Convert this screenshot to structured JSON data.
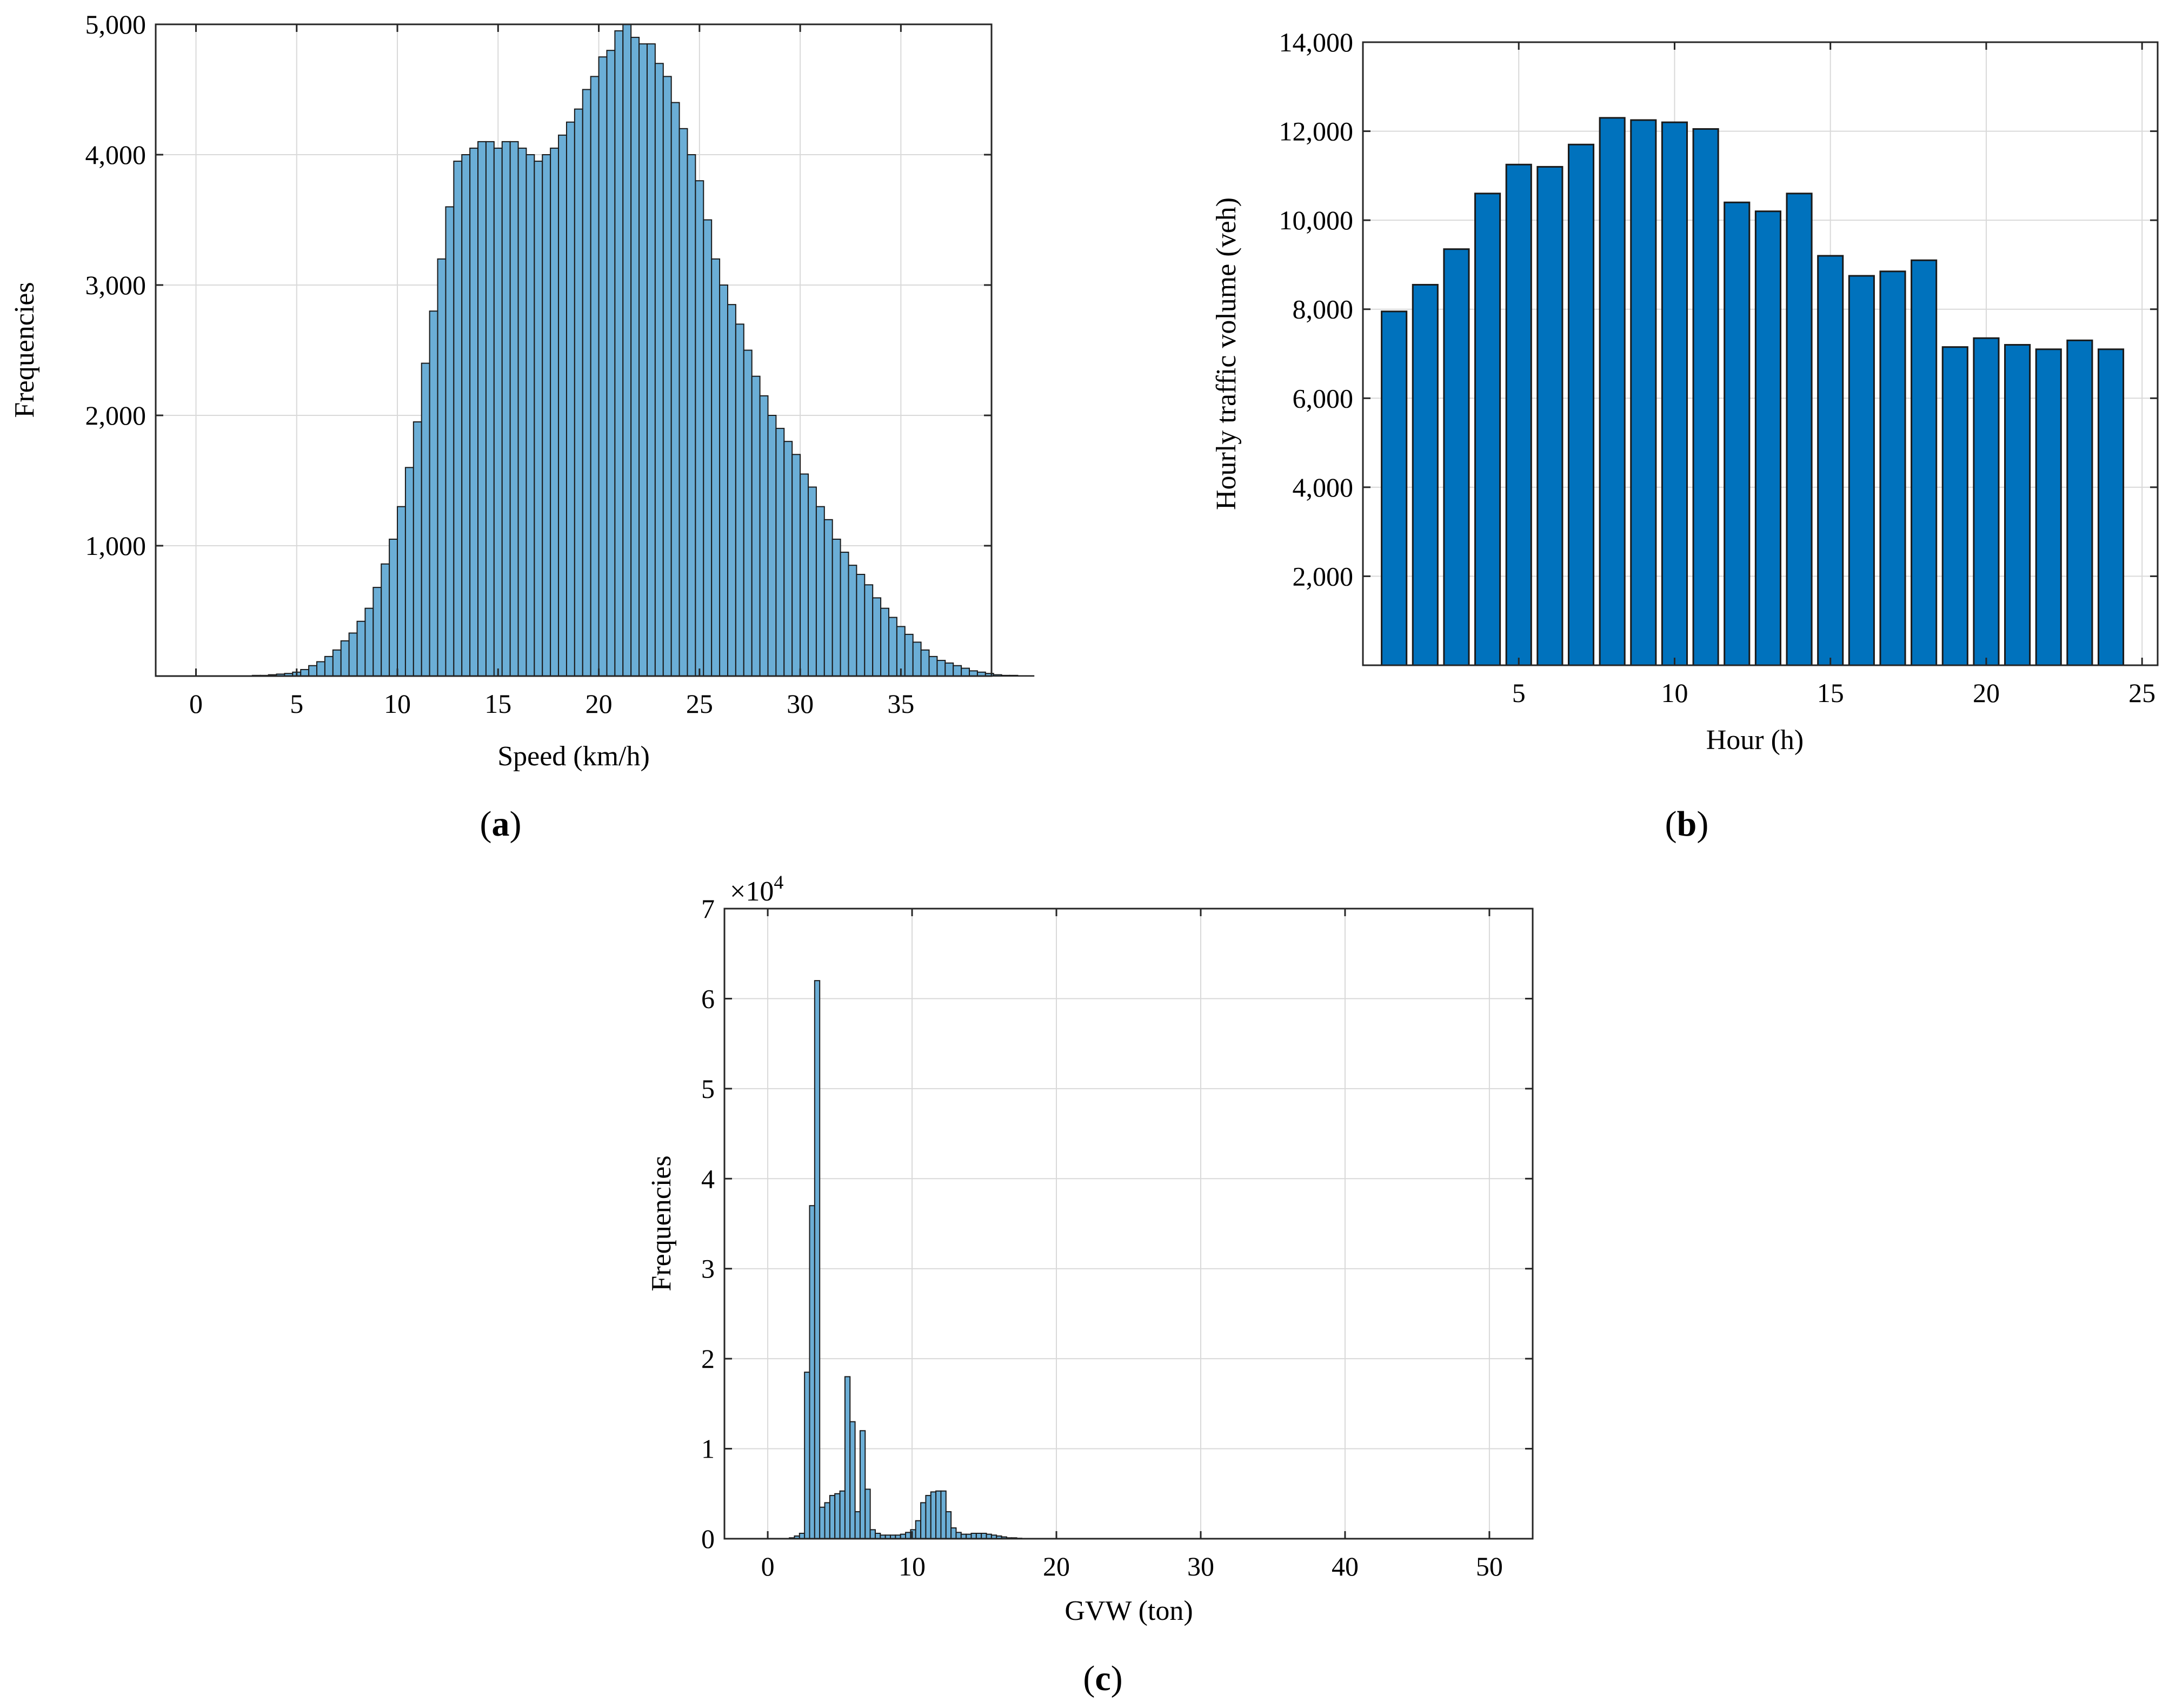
{
  "chart_data": [
    {
      "panel": "a",
      "type": "bar",
      "subtype": "histogram",
      "caption_open": "(",
      "caption_letter": "a",
      "caption_close": ")",
      "xlabel": "Speed (km/h)",
      "ylabel": "Frequencies",
      "xlim": [
        -2,
        39.5
      ],
      "ylim": [
        0,
        5000
      ],
      "xticks": [
        0,
        5,
        10,
        15,
        20,
        25,
        30,
        35
      ],
      "xtick_labels": [
        "0",
        "5",
        "10",
        "15",
        "20",
        "25",
        "30",
        "35"
      ],
      "yticks": [
        1000,
        2000,
        3000,
        4000,
        5000
      ],
      "ytick_labels": [
        "1,000",
        "2,000",
        "3,000",
        "4,000",
        "5,000"
      ],
      "grid": true,
      "bar_color": "#6baed6",
      "bin_start": 0,
      "bin_width": 0.4,
      "values": [
        0,
        0,
        0,
        0,
        0,
        0,
        0,
        5,
        5,
        10,
        15,
        20,
        30,
        50,
        80,
        110,
        150,
        200,
        270,
        330,
        420,
        520,
        680,
        860,
        1050,
        1300,
        1600,
        1950,
        2400,
        2800,
        3200,
        3600,
        3950,
        4000,
        4050,
        4100,
        4100,
        4050,
        4100,
        4100,
        4050,
        4000,
        3950,
        4000,
        4050,
        4150,
        4250,
        4350,
        4500,
        4600,
        4750,
        4800,
        4950,
        5000,
        4900,
        4850,
        4850,
        4700,
        4600,
        4400,
        4200,
        4000,
        3800,
        3500,
        3200,
        3000,
        2850,
        2700,
        2500,
        2300,
        2150,
        2000,
        1900,
        1800,
        1700,
        1550,
        1450,
        1300,
        1200,
        1050,
        950,
        850,
        780,
        700,
        600,
        520,
        450,
        380,
        320,
        260,
        200,
        150,
        120,
        100,
        80,
        60,
        40,
        30,
        20,
        10,
        5,
        5,
        2,
        2,
        0,
        0
      ]
    },
    {
      "panel": "b",
      "type": "bar",
      "caption_open": "(",
      "caption_letter": "b",
      "caption_close": ")",
      "xlabel": "Hour (h)",
      "ylabel": "Hourly traffic volume (veh)",
      "xlim": [
        0,
        25.5
      ],
      "ylim": [
        0,
        14000
      ],
      "xticks": [
        5,
        10,
        15,
        20,
        25
      ],
      "xtick_labels": [
        "5",
        "10",
        "15",
        "20",
        "25"
      ],
      "yticks": [
        2000,
        4000,
        6000,
        8000,
        10000,
        12000,
        14000
      ],
      "ytick_labels": [
        "2,000",
        "4,000",
        "6,000",
        "8,000",
        "10,000",
        "12,000",
        "14,000"
      ],
      "grid": true,
      "bar_color": "#0072bd",
      "categories": [
        1,
        2,
        3,
        4,
        5,
        6,
        7,
        8,
        9,
        10,
        11,
        12,
        13,
        14,
        15,
        16,
        17,
        18,
        19,
        20,
        21,
        22,
        23,
        24
      ],
      "values": [
        7950,
        8550,
        9350,
        10600,
        11250,
        11200,
        11700,
        12300,
        12250,
        12200,
        12050,
        10400,
        10200,
        10600,
        9200,
        8750,
        8850,
        9100,
        7150,
        7350,
        7200,
        7100,
        7300,
        7100
      ]
    },
    {
      "panel": "c",
      "type": "bar",
      "subtype": "histogram",
      "caption_open": "(",
      "caption_letter": "c",
      "caption_close": ")",
      "xlabel": "GVW (ton)",
      "ylabel": "Frequencies",
      "multiplier_base": "×10",
      "multiplier_exp": "4",
      "xlim": [
        -3,
        53
      ],
      "ylim": [
        0,
        7
      ],
      "xticks": [
        0,
        10,
        20,
        30,
        40,
        50
      ],
      "xtick_labels": [
        "0",
        "10",
        "20",
        "30",
        "40",
        "50"
      ],
      "yticks": [
        0,
        1,
        2,
        3,
        4,
        5,
        6,
        7
      ],
      "ytick_labels": [
        "0",
        "1",
        "2",
        "3",
        "4",
        "5",
        "6",
        "7"
      ],
      "grid": true,
      "bar_color": "#6baed6",
      "bin_start": 1.5,
      "bin_width": 0.35,
      "values": [
        0.01,
        0.03,
        0.06,
        1.85,
        3.7,
        6.2,
        0.35,
        0.4,
        0.48,
        0.5,
        0.53,
        1.8,
        1.3,
        0.3,
        1.2,
        0.55,
        0.1,
        0.06,
        0.04,
        0.04,
        0.04,
        0.04,
        0.05,
        0.07,
        0.1,
        0.2,
        0.4,
        0.48,
        0.52,
        0.53,
        0.53,
        0.3,
        0.12,
        0.07,
        0.05,
        0.05,
        0.06,
        0.06,
        0.06,
        0.05,
        0.04,
        0.03,
        0.02,
        0.01,
        0.01,
        0.005
      ]
    }
  ]
}
